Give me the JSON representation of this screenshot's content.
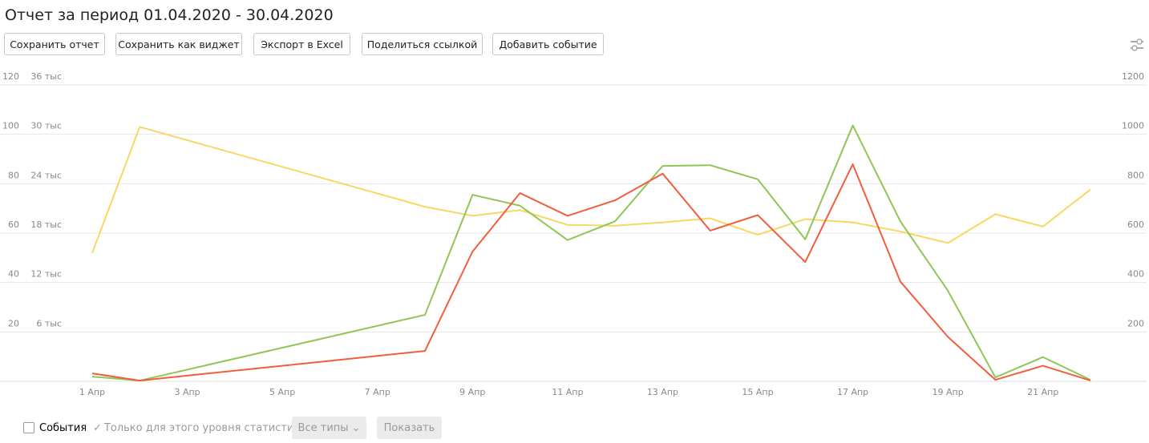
{
  "header": {
    "title": "Отчет за период 01.04.2020 - 30.04.2020",
    "buttons": [
      "Сохранить отчет",
      "Сохранить как виджет",
      "Экспорт в Excel",
      "Поделиться ссылкой",
      "Добавить событие"
    ]
  },
  "chart_data": {
    "type": "line",
    "x": [
      1,
      2,
      8,
      9,
      10,
      11,
      12,
      13,
      14,
      15,
      16,
      17,
      18,
      19,
      20,
      21,
      22
    ],
    "xlim": [
      1,
      22
    ],
    "xticks": [
      {
        "value": 1,
        "label": "1 Апр"
      },
      {
        "value": 3,
        "label": "3 Апр"
      },
      {
        "value": 5,
        "label": "5 Апр"
      },
      {
        "value": 7,
        "label": "7 Апр"
      },
      {
        "value": 9,
        "label": "9 Апр"
      },
      {
        "value": 11,
        "label": "11 Апр"
      },
      {
        "value": 13,
        "label": "13 Апр"
      },
      {
        "value": 15,
        "label": "15 Апр"
      },
      {
        "value": 17,
        "label": "17 Апр"
      },
      {
        "value": 19,
        "label": "19 Апр"
      },
      {
        "value": 21,
        "label": "21 Апр"
      }
    ],
    "ylim": [
      0,
      120
    ],
    "yticks": [
      20,
      40,
      60,
      80,
      100,
      120
    ],
    "y2lim": [
      0,
      36000
    ],
    "y2ticks": [
      {
        "value": 6000,
        "label": "6 тыс"
      },
      {
        "value": 12000,
        "label": "12 тыс"
      },
      {
        "value": 18000,
        "label": "18 тыс"
      },
      {
        "value": 24000,
        "label": "24 тыс"
      },
      {
        "value": 30000,
        "label": "30 тыс"
      },
      {
        "value": 36000,
        "label": "36 тыс"
      }
    ],
    "y3lim": [
      0,
      1200
    ],
    "y3ticks": [
      200,
      400,
      600,
      800,
      1000,
      1200
    ],
    "grid": true,
    "series": [
      {
        "color": "#f6d862",
        "axis": "y2",
        "values": [
          15600,
          30900,
          21200,
          20100,
          20800,
          19000,
          18900,
          19300,
          19800,
          17800,
          19700,
          19300,
          18200,
          16800,
          20300,
          18800,
          23300
        ]
      },
      {
        "color": "#8fc654",
        "values": [
          1.9,
          0.3,
          26.9,
          75.5,
          71.1,
          57.2,
          64.8,
          87.2,
          87.5,
          81.8,
          57.5,
          103.6,
          64.8,
          36.7,
          1.6,
          9.8,
          0.6
        ]
      },
      {
        "color": "#f25d3d",
        "axis": "y3",
        "values": [
          32,
          3,
          123,
          525,
          762,
          670,
          733,
          841,
          610,
          673,
          483,
          879,
          404,
          180,
          6,
          63,
          3
        ]
      }
    ]
  },
  "footer": {
    "events": "События",
    "only_level": "Только для этого уровня статистики",
    "types": "Все типы",
    "show": "Показать"
  }
}
